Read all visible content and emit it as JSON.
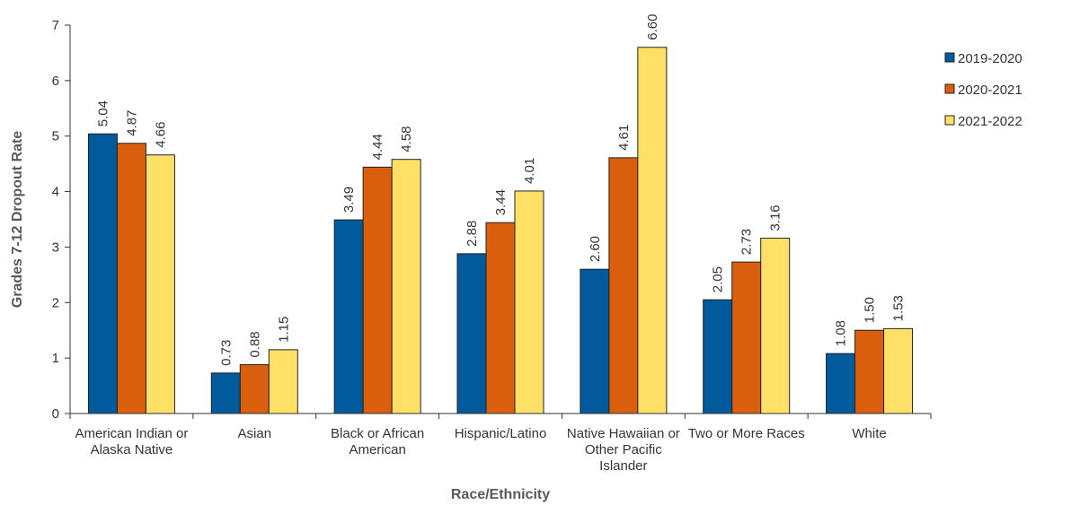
{
  "chart_data": {
    "type": "bar",
    "categories": [
      [
        "American Indian or",
        "Alaska Native"
      ],
      [
        "Asian"
      ],
      [
        "Black or African",
        "American"
      ],
      [
        "Hispanic/Latino"
      ],
      [
        "Native Hawaiian or",
        "Other Pacific",
        "Islander"
      ],
      [
        "Two or More Races"
      ],
      [
        "White"
      ]
    ],
    "series": [
      {
        "name": "2019-2020",
        "color": "#005a9c",
        "values": [
          5.04,
          0.73,
          3.49,
          2.88,
          2.6,
          2.05,
          1.08
        ]
      },
      {
        "name": "2020-2021",
        "color": "#d95f0e",
        "values": [
          4.87,
          0.88,
          4.44,
          3.44,
          4.61,
          2.73,
          1.5
        ]
      },
      {
        "name": "2021-2022",
        "color": "#ffe066",
        "values": [
          4.66,
          1.15,
          4.58,
          4.01,
          6.6,
          3.16,
          1.53
        ]
      }
    ],
    "xlabel": "Race/Ethnicity",
    "ylabel": "Grades 7-12 Dropout Rate",
    "ylim": [
      0,
      7
    ],
    "yticks": [
      0,
      1,
      2,
      3,
      4,
      5,
      6,
      7
    ],
    "data_label_format": "2 decimals",
    "grid": false,
    "legend_position": "top-right"
  }
}
